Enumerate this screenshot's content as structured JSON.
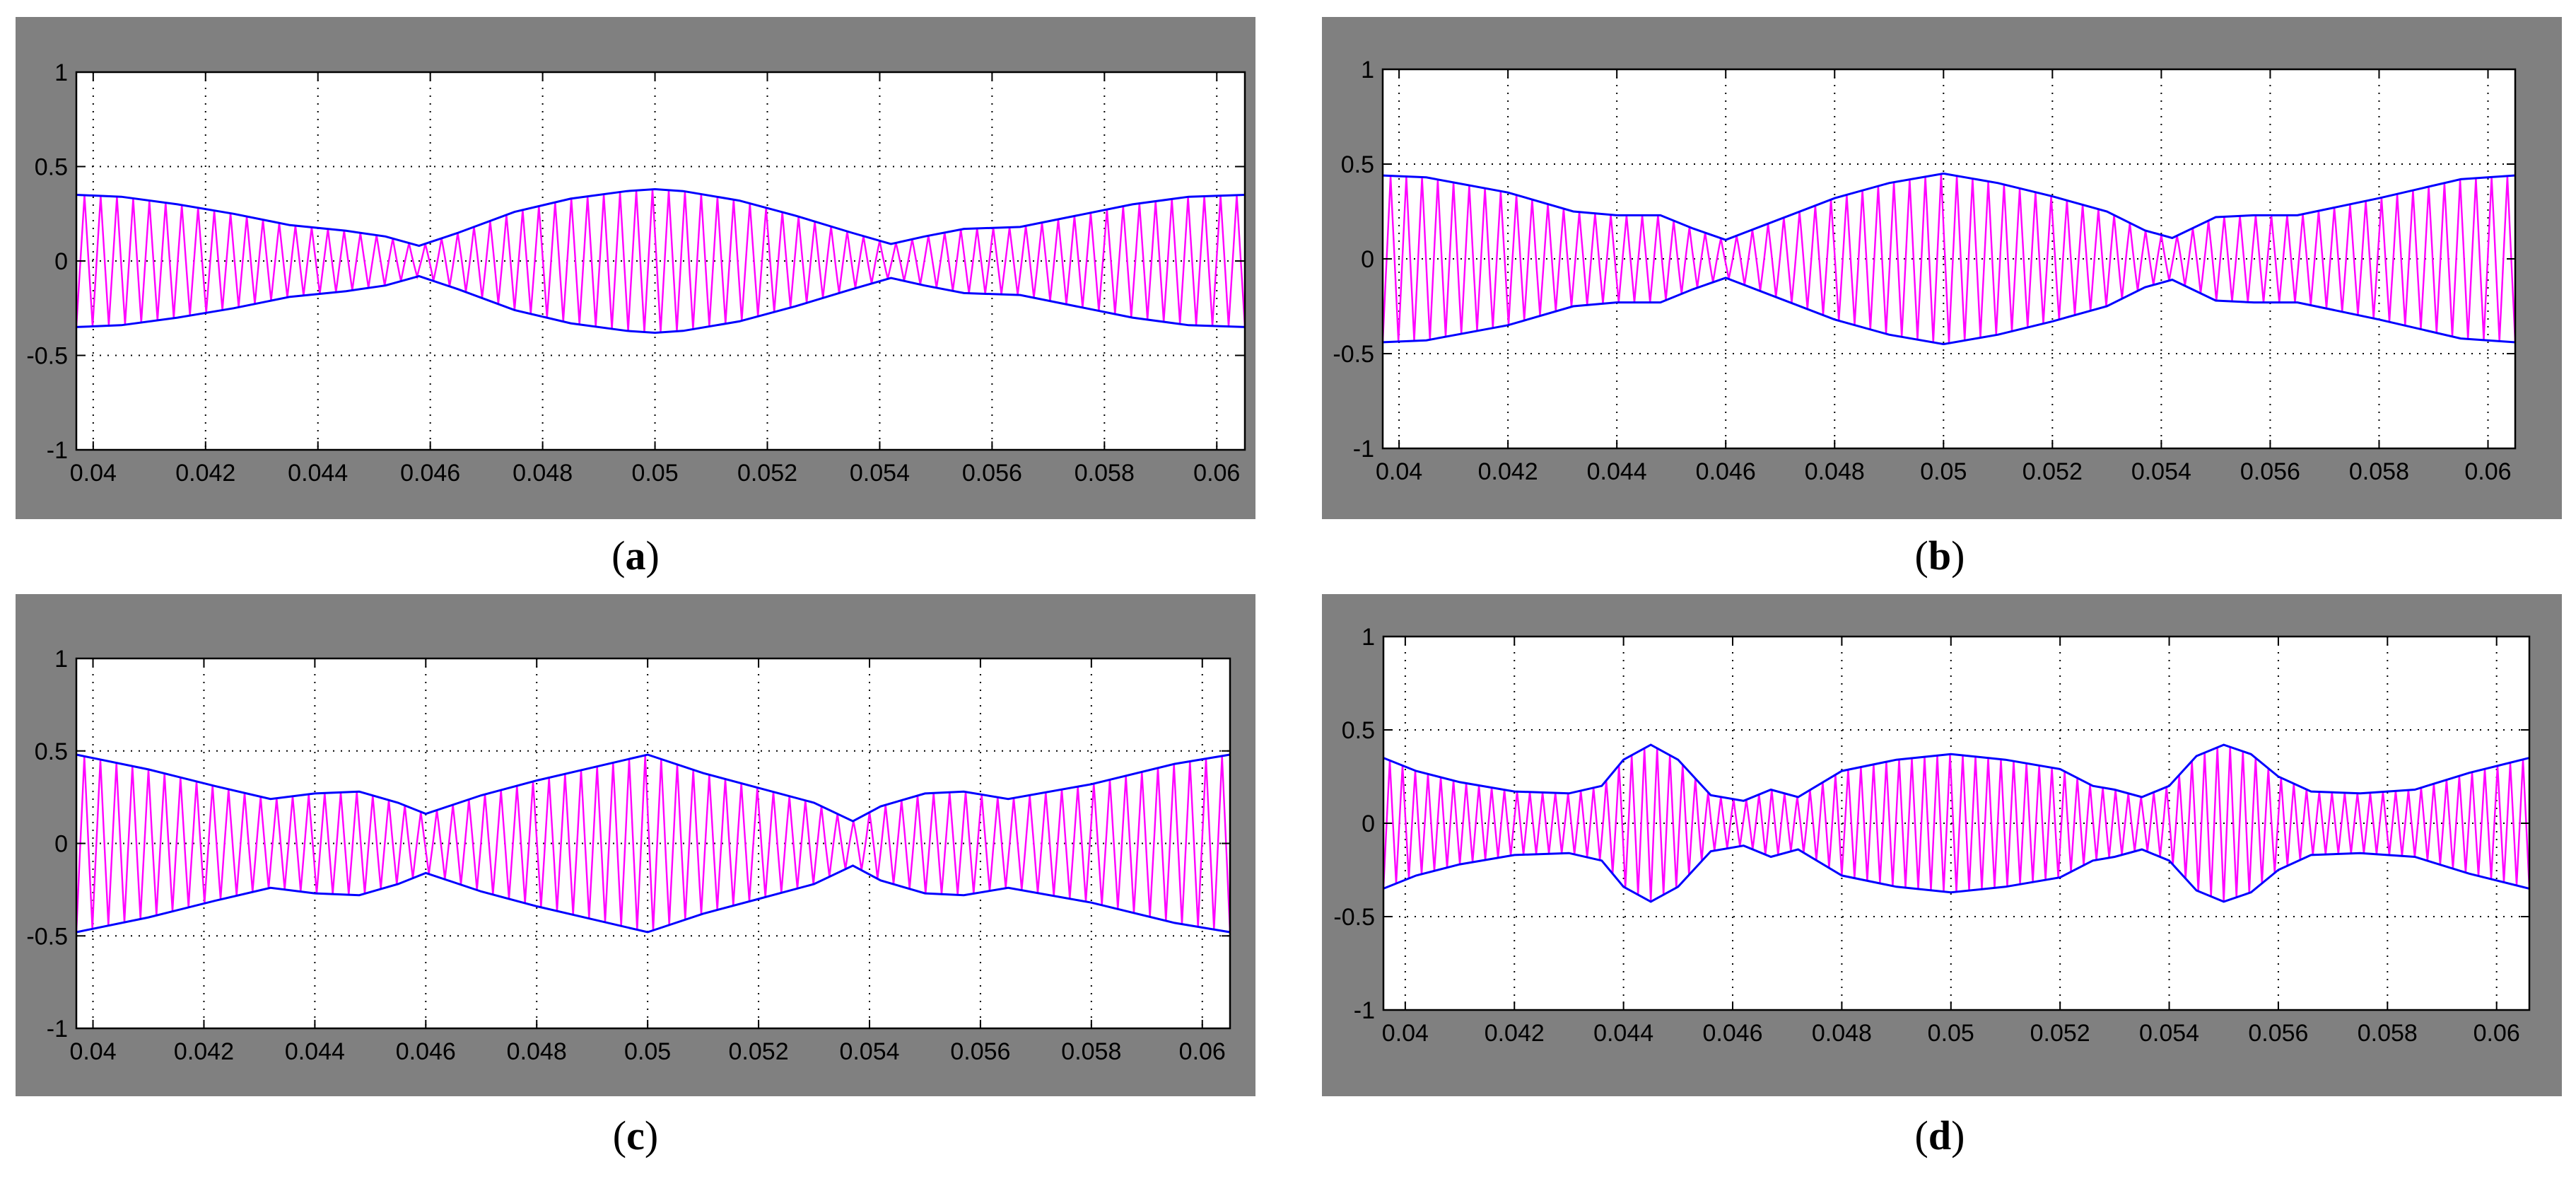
{
  "colors": {
    "background": "#808080",
    "plot_bg": "#ffffff",
    "signal": "#ff00ff",
    "envelope": "#0000ff",
    "grid": "#000000"
  },
  "chart_data": [
    {
      "type": "line",
      "panel_label": "a",
      "xlim": [
        0.0397,
        0.0605
      ],
      "ylim": [
        -1,
        1
      ],
      "x_ticks": [
        0.04,
        0.042,
        0.044,
        0.046,
        0.048,
        0.05,
        0.052,
        0.054,
        0.056,
        0.058,
        0.06
      ],
      "x_tick_labels": [
        "0.04",
        "0.042",
        "0.044",
        "0.046",
        "0.048",
        "0.05",
        "0.052",
        "0.054",
        "0.056",
        "0.058",
        "0.06"
      ],
      "y_ticks": [
        -1,
        -0.5,
        0,
        0.5,
        1
      ],
      "y_tick_labels": [
        "-1",
        "-0.5",
        "0",
        "0.5",
        "1"
      ],
      "grid": true,
      "carrier_cycles": 72,
      "envelope": {
        "x": [
          0.0397,
          0.0405,
          0.0415,
          0.0425,
          0.0435,
          0.0445,
          0.0452,
          0.0458,
          0.0465,
          0.0475,
          0.0485,
          0.0495,
          0.05,
          0.0505,
          0.0515,
          0.0525,
          0.0535,
          0.0542,
          0.0548,
          0.0555,
          0.0565,
          0.0575,
          0.0585,
          0.0595,
          0.0605
        ],
        "y": [
          0.35,
          0.34,
          0.3,
          0.25,
          0.19,
          0.16,
          0.13,
          0.08,
          0.15,
          0.26,
          0.33,
          0.37,
          0.38,
          0.37,
          0.32,
          0.24,
          0.15,
          0.09,
          0.13,
          0.17,
          0.18,
          0.24,
          0.3,
          0.34,
          0.35
        ]
      }
    },
    {
      "type": "line",
      "panel_label": "b",
      "xlim": [
        0.0397,
        0.0605
      ],
      "ylim": [
        -1,
        1
      ],
      "x_ticks": [
        0.04,
        0.042,
        0.044,
        0.046,
        0.048,
        0.05,
        0.052,
        0.054,
        0.056,
        0.058,
        0.06
      ],
      "x_tick_labels": [
        "0.04",
        "0.042",
        "0.044",
        "0.046",
        "0.048",
        "0.05",
        "0.052",
        "0.054",
        "0.056",
        "0.058",
        "0.06"
      ],
      "y_ticks": [
        -1,
        -0.5,
        0,
        0.5,
        1
      ],
      "y_tick_labels": [
        "-1",
        "-0.5",
        "0",
        "0.5",
        "1"
      ],
      "grid": true,
      "carrier_cycles": 72,
      "envelope": {
        "x": [
          0.0397,
          0.0405,
          0.042,
          0.0432,
          0.044,
          0.0448,
          0.0454,
          0.046,
          0.047,
          0.048,
          0.049,
          0.05,
          0.051,
          0.052,
          0.053,
          0.0537,
          0.0542,
          0.055,
          0.0557,
          0.0565,
          0.058,
          0.0595,
          0.0605
        ],
        "y": [
          0.44,
          0.43,
          0.35,
          0.25,
          0.23,
          0.23,
          0.16,
          0.1,
          0.21,
          0.32,
          0.4,
          0.45,
          0.4,
          0.33,
          0.25,
          0.15,
          0.11,
          0.22,
          0.23,
          0.23,
          0.32,
          0.42,
          0.44
        ]
      }
    },
    {
      "type": "line",
      "panel_label": "c",
      "xlim": [
        0.0397,
        0.0605
      ],
      "ylim": [
        -1,
        1
      ],
      "x_ticks": [
        0.04,
        0.042,
        0.044,
        0.046,
        0.048,
        0.05,
        0.052,
        0.054,
        0.056,
        0.058,
        0.06
      ],
      "x_tick_labels": [
        "0.04",
        "0.042",
        "0.044",
        "0.046",
        "0.048",
        "0.05",
        "0.052",
        "0.054",
        "0.056",
        "0.058",
        "0.06"
      ],
      "y_ticks": [
        -1,
        -0.5,
        0,
        0.5,
        1
      ],
      "y_tick_labels": [
        "-1",
        "-0.5",
        "0",
        "0.5",
        "1"
      ],
      "grid": true,
      "carrier_cycles": 72,
      "envelope": {
        "x": [
          0.0397,
          0.041,
          0.0422,
          0.0432,
          0.044,
          0.0448,
          0.0455,
          0.046,
          0.047,
          0.048,
          0.049,
          0.05,
          0.051,
          0.052,
          0.053,
          0.0537,
          0.0542,
          0.055,
          0.0557,
          0.0565,
          0.058,
          0.0595,
          0.0605
        ],
        "y": [
          0.48,
          0.4,
          0.31,
          0.24,
          0.27,
          0.28,
          0.22,
          0.16,
          0.26,
          0.34,
          0.41,
          0.48,
          0.38,
          0.3,
          0.22,
          0.12,
          0.2,
          0.27,
          0.28,
          0.24,
          0.32,
          0.43,
          0.48
        ]
      }
    },
    {
      "type": "line",
      "panel_label": "d",
      "xlim": [
        0.0396,
        0.0606
      ],
      "ylim": [
        -1,
        1
      ],
      "x_ticks": [
        0.04,
        0.042,
        0.044,
        0.046,
        0.048,
        0.05,
        0.052,
        0.054,
        0.056,
        0.058,
        0.06
      ],
      "x_tick_labels": [
        "0.04",
        "0.042",
        "0.044",
        "0.046",
        "0.048",
        "0.05",
        "0.052",
        "0.054",
        "0.056",
        "0.058",
        "0.06"
      ],
      "y_ticks": [
        -1,
        -0.5,
        0,
        0.5,
        1
      ],
      "y_tick_labels": [
        "-1",
        "-0.5",
        "0",
        "0.5",
        "1"
      ],
      "grid": true,
      "carrier_cycles": 90,
      "envelope": {
        "x": [
          0.0396,
          0.0402,
          0.041,
          0.042,
          0.043,
          0.0436,
          0.044,
          0.0445,
          0.045,
          0.0456,
          0.0462,
          0.0467,
          0.0472,
          0.048,
          0.049,
          0.05,
          0.051,
          0.052,
          0.0526,
          0.053,
          0.0535,
          0.054,
          0.0545,
          0.055,
          0.0555,
          0.056,
          0.0566,
          0.0575,
          0.0585,
          0.0595,
          0.0606
        ],
        "y": [
          0.35,
          0.28,
          0.22,
          0.17,
          0.16,
          0.2,
          0.34,
          0.42,
          0.34,
          0.15,
          0.12,
          0.18,
          0.14,
          0.28,
          0.34,
          0.37,
          0.34,
          0.29,
          0.2,
          0.18,
          0.14,
          0.2,
          0.36,
          0.42,
          0.37,
          0.25,
          0.17,
          0.16,
          0.18,
          0.27,
          0.35
        ]
      }
    }
  ],
  "captions": [
    "a",
    "b",
    "c",
    "d"
  ]
}
